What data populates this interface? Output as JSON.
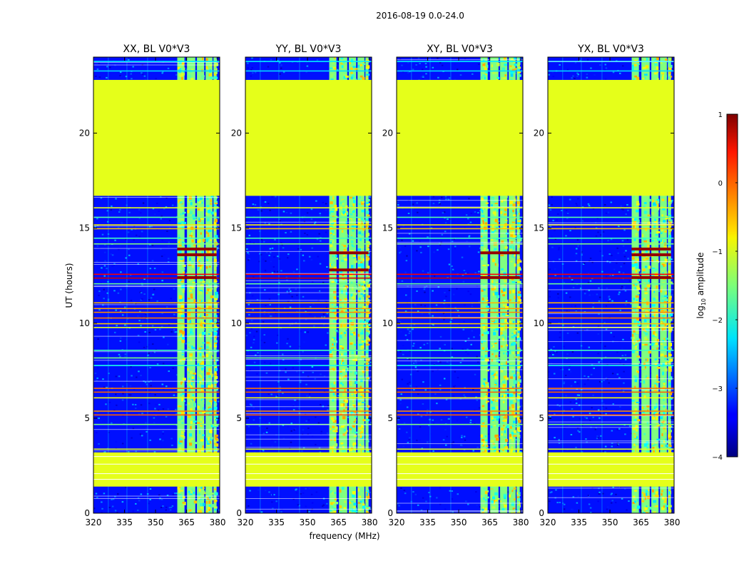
{
  "chart_data": {
    "type": "heatmap",
    "suptitle": "2016-08-19 0.0-24.0",
    "xlabel": "frequency (MHz)",
    "ylabel": "UT (hours)",
    "xlim": [
      320,
      381
    ],
    "ylim": [
      0,
      24
    ],
    "x_ticks": [
      320,
      335,
      350,
      365,
      380
    ],
    "y_ticks": [
      0,
      5,
      10,
      15,
      20
    ],
    "colorbar": {
      "label": "log10 amplitude",
      "label_base": "log",
      "label_sub": "10",
      "label_tail": " amplitude",
      "range": [
        -4,
        1
      ],
      "ticks": [
        -4,
        -3,
        -2,
        -1,
        0,
        1
      ],
      "tick_labels": [
        "−4",
        "−3",
        "−2",
        "−1",
        "0",
        "1"
      ],
      "colormap": "jet"
    },
    "panels": [
      {
        "title": "XX, BL V0*V3",
        "strong_rfi_hours": [
          12.4,
          13.6,
          13.9
        ]
      },
      {
        "title": "YY, BL V0*V3",
        "strong_rfi_hours": [
          12.8,
          13.7
        ]
      },
      {
        "title": "XY, BL V0*V3",
        "strong_rfi_hours": [
          12.4,
          13.7
        ]
      },
      {
        "title": "YX, BL V0*V3",
        "strong_rfi_hours": [
          12.4,
          13.6,
          13.9
        ]
      }
    ],
    "background_level": -3.3,
    "flagged_level": -1.0,
    "flagged_ut_ranges": [
      [
        16.7,
        22.8
      ],
      [
        1.4,
        3.2
      ]
    ],
    "rfi_band_mhz": [
      360.5,
      379.5
    ],
    "rfi_band_columns_mhz": [
      [
        360.5,
        364.0
      ],
      [
        365.2,
        369.2
      ],
      [
        370.0,
        373.5
      ],
      [
        374.2,
        377.5
      ],
      [
        378.0,
        379.5
      ]
    ],
    "narrow_rfi_freqs_mhz": [
      327,
      336,
      346
    ],
    "horizontal_rfi_hours": [
      {
        "h": 23.8,
        "v": -2.2
      },
      {
        "h": 23.3,
        "v": -2.3
      },
      {
        "h": 16.1,
        "v": -1.0
      },
      {
        "h": 15.6,
        "v": -1.7
      },
      {
        "h": 15.2,
        "v": -0.8
      },
      {
        "h": 15.0,
        "v": -0.6
      },
      {
        "h": 14.5,
        "v": -1.8
      },
      {
        "h": 14.2,
        "v": -1.5
      },
      {
        "h": 12.4,
        "v": 0.6
      },
      {
        "h": 12.6,
        "v": 0.4
      },
      {
        "h": 12.1,
        "v": -1.6
      },
      {
        "h": 11.1,
        "v": -0.5
      },
      {
        "h": 10.8,
        "v": -0.4
      },
      {
        "h": 10.6,
        "v": -0.3
      },
      {
        "h": 10.3,
        "v": -0.2
      },
      {
        "h": 10.0,
        "v": -0.6
      },
      {
        "h": 9.8,
        "v": -1.0
      },
      {
        "h": 8.6,
        "v": -1.8
      },
      {
        "h": 8.2,
        "v": -1.5
      },
      {
        "h": 7.8,
        "v": -2.0
      },
      {
        "h": 6.6,
        "v": -0.2
      },
      {
        "h": 6.4,
        "v": -0.1
      },
      {
        "h": 6.1,
        "v": -0.9
      },
      {
        "h": 5.4,
        "v": -0.3
      },
      {
        "h": 5.2,
        "v": -0.1
      },
      {
        "h": 4.7,
        "v": -1.5
      },
      {
        "h": 3.4,
        "v": -1.0
      }
    ]
  }
}
